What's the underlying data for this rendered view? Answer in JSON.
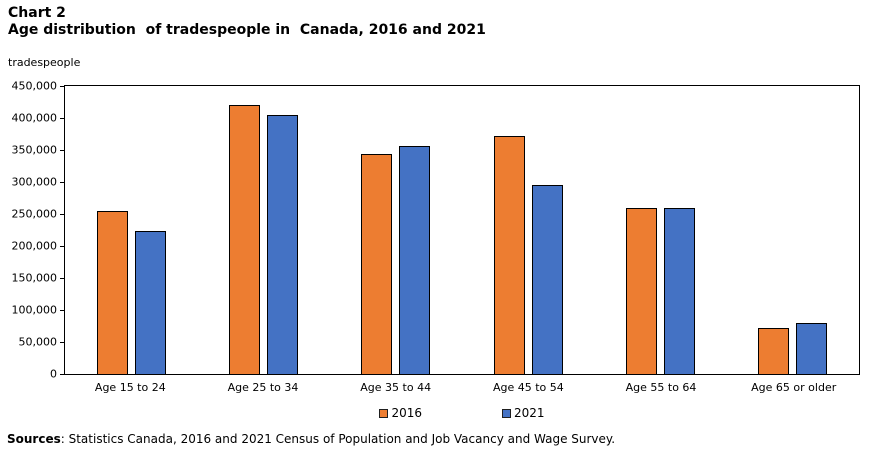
{
  "title": "Chart 2",
  "subtitle": "Age distribution  of tradespeople in  Canada, 2016 and 2021",
  "unit_label": "tradespeople",
  "source": {
    "label": "Sources",
    "text": ": Statistics Canada, 2016 and 2021 Census of Population and Job Vacancy and Wage Survey."
  },
  "colors": {
    "series_2016": "#ED7D31",
    "series_2021": "#4472C4",
    "bar_border": "#000000",
    "axis": "#000000",
    "text": "#000000",
    "background": "#FFFFFF"
  },
  "chart_data": {
    "type": "bar",
    "title": "Chart 2",
    "subtitle": "Age distribution of tradespeople in Canada, 2016 and 2021",
    "xlabel": "",
    "ylabel": "tradespeople",
    "categories": [
      "Age 15 to 24",
      "Age 25 to 34",
      "Age 35 to 44",
      "Age 45 to 54",
      "Age 55 to 64",
      "Age 65 or older"
    ],
    "series": [
      {
        "name": "2016",
        "color": "#ED7D31",
        "values": [
          254000,
          420000,
          343000,
          372000,
          260000,
          72000
        ]
      },
      {
        "name": "2021",
        "color": "#4472C4",
        "values": [
          224000,
          404000,
          356000,
          296000,
          259000,
          80000
        ]
      }
    ],
    "ylim": [
      0,
      450000
    ],
    "ytick_step": 50000,
    "ytick_labels": [
      "0",
      "50,000",
      "100,000",
      "150,000",
      "200,000",
      "250,000",
      "300,000",
      "350,000",
      "400,000",
      "450,000"
    ],
    "grid": false,
    "legend_position": "bottom-center"
  }
}
